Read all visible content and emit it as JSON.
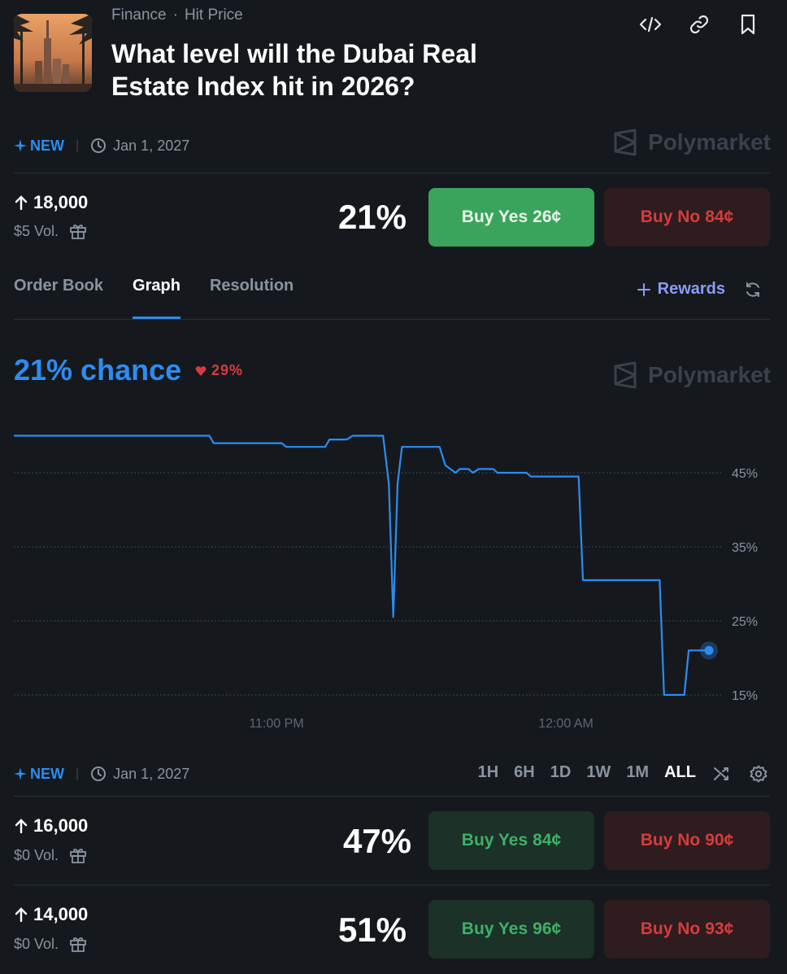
{
  "header": {
    "category": "Finance",
    "subcategory": "Hit Price",
    "title": "What level will the Dubai Real Estate Index hit in 2026?"
  },
  "top_icons": [
    "embed-code-icon",
    "link-icon",
    "bookmark-icon"
  ],
  "meta": {
    "badge": "NEW",
    "date": "Jan 1, 2027",
    "watermark": "Polymarket"
  },
  "selected_market": {
    "level": "18,000",
    "volume": "$5 Vol.",
    "percent": "21%",
    "buy_yes": "Buy Yes",
    "yes_price": "26¢",
    "buy_no": "Buy No",
    "no_price": "84¢"
  },
  "tabs": [
    {
      "label": "Order Book",
      "active": false
    },
    {
      "label": "Graph",
      "active": true
    },
    {
      "label": "Resolution",
      "active": false
    }
  ],
  "rewards_label": "Rewards",
  "graph": {
    "chance": "21% chance",
    "delta": "29%",
    "watermark": "Polymarket"
  },
  "chart_data": {
    "type": "line",
    "y_ticks": [
      "45%",
      "35%",
      "25%",
      "15%"
    ],
    "x_ticks": [
      "11:00 PM",
      "12:00 AM"
    ],
    "ylim": [
      15,
      50
    ],
    "series": [
      {
        "color": "#2d8cf0",
        "points": [
          [
            0,
            50
          ],
          [
            13.5,
            50
          ],
          [
            13.8,
            49
          ],
          [
            18.5,
            49
          ],
          [
            18.8,
            48.5
          ],
          [
            21.5,
            48.5
          ],
          [
            21.8,
            49.5
          ],
          [
            23.0,
            49.5
          ],
          [
            23.4,
            50
          ],
          [
            25.5,
            50
          ],
          [
            25.9,
            43.5
          ],
          [
            26.2,
            25.5
          ],
          [
            26.5,
            43.5
          ],
          [
            26.8,
            48.5
          ],
          [
            29.4,
            48.5
          ],
          [
            29.8,
            46
          ],
          [
            30.5,
            45
          ],
          [
            30.8,
            45.5
          ],
          [
            31.4,
            45.5
          ],
          [
            31.7,
            45
          ],
          [
            32.1,
            45.5
          ],
          [
            33.1,
            45.5
          ],
          [
            33.4,
            45
          ],
          [
            35.4,
            45
          ],
          [
            35.7,
            44.5
          ],
          [
            39.0,
            44.5
          ],
          [
            39.3,
            30.5
          ],
          [
            44.6,
            30.5
          ],
          [
            44.9,
            15
          ],
          [
            46.3,
            15
          ],
          [
            46.6,
            21
          ],
          [
            48.0,
            21
          ]
        ],
        "x_domain": [
          0,
          48
        ],
        "current_value": 21
      }
    ]
  },
  "time_ranges": [
    {
      "label": "1H",
      "active": false
    },
    {
      "label": "6H",
      "active": false
    },
    {
      "label": "1D",
      "active": false
    },
    {
      "label": "1W",
      "active": false
    },
    {
      "label": "1M",
      "active": false
    },
    {
      "label": "ALL",
      "active": true
    }
  ],
  "other_markets": [
    {
      "level": "16,000",
      "volume": "$0 Vol.",
      "percent": "47%",
      "buy_yes": "Buy Yes",
      "yes_price": "84¢",
      "buy_no": "Buy No",
      "no_price": "90¢"
    },
    {
      "level": "14,000",
      "volume": "$0 Vol.",
      "percent": "51%",
      "buy_yes": "Buy Yes",
      "yes_price": "96¢",
      "buy_no": "Buy No",
      "no_price": "93¢"
    }
  ],
  "colors": {
    "background": "#15191e",
    "accent_blue": "#2d8cf0",
    "yes_green": "#3aa35c",
    "no_red": "#d63c3c",
    "rewards_purple": "#8b9cf5"
  }
}
